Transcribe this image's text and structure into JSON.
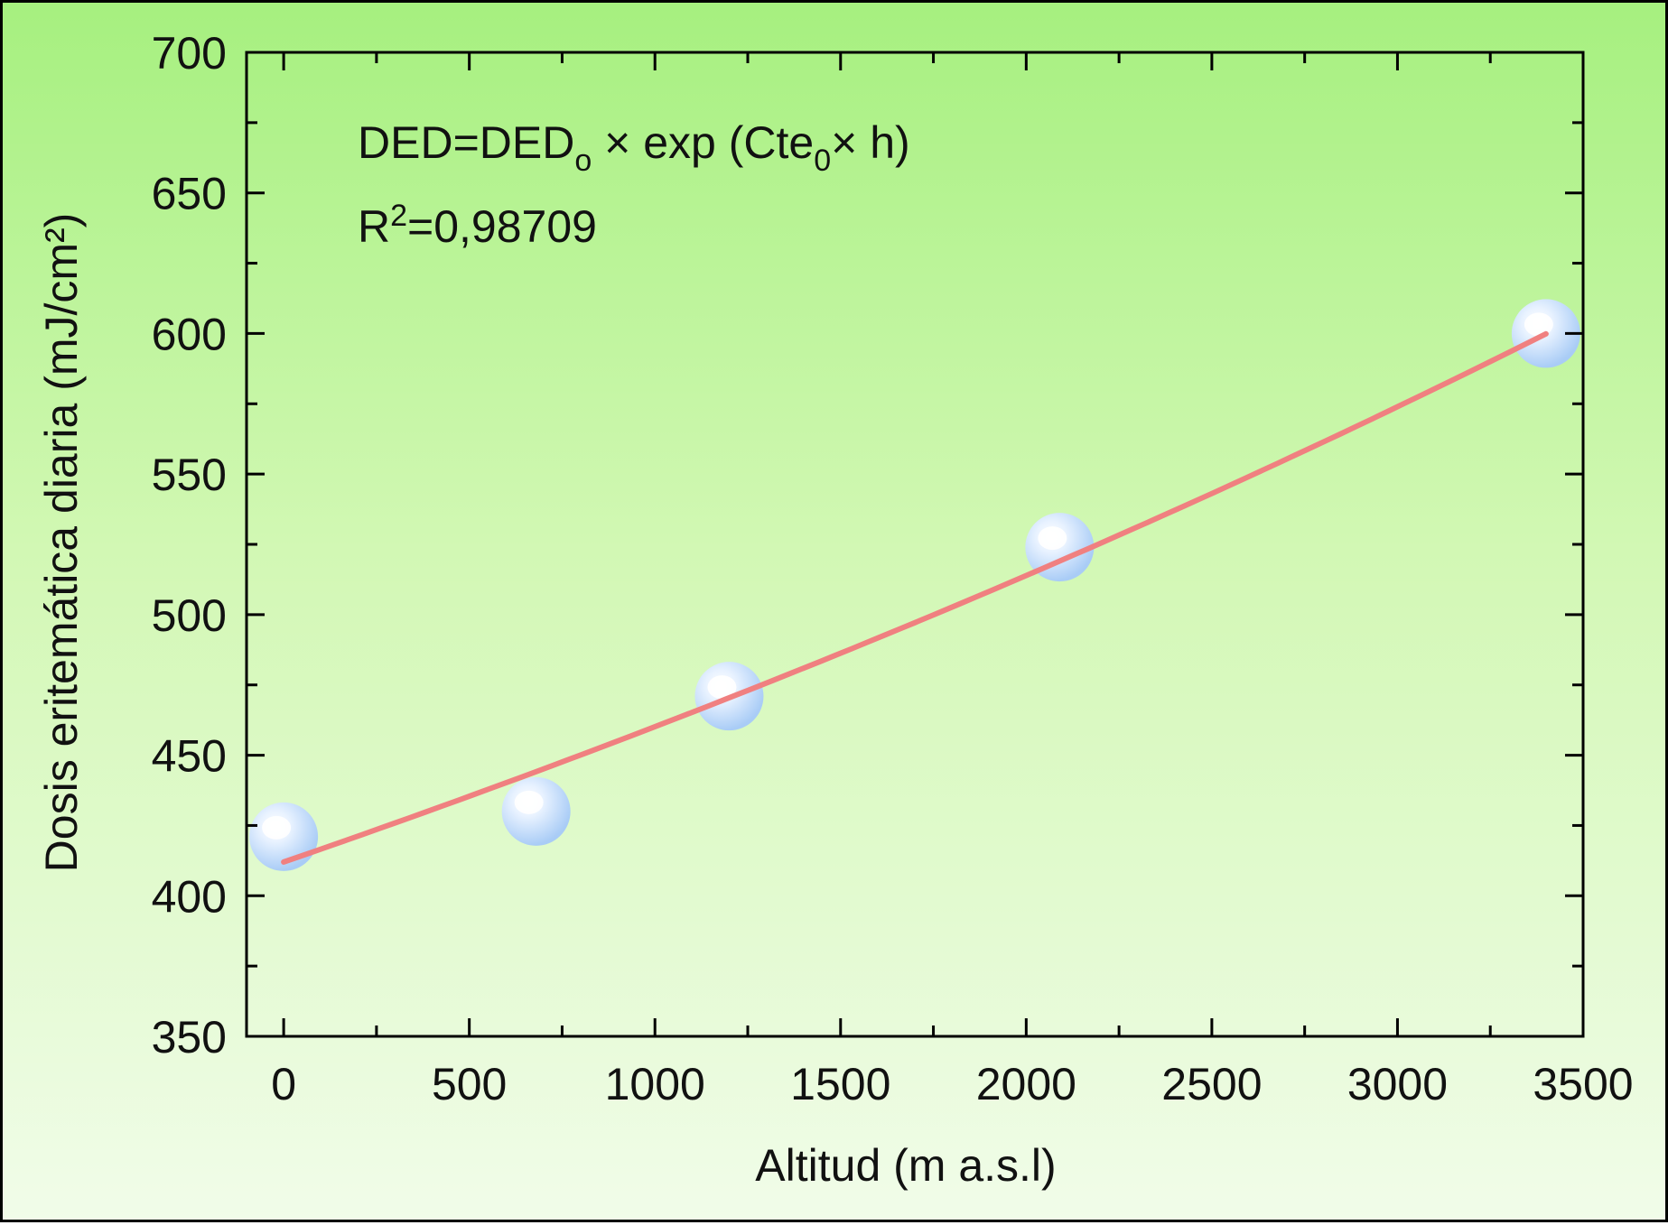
{
  "chart_data": {
    "type": "scatter",
    "xlabel": "Altitud (m a.s.l)",
    "ylabel": "Dosis eritemática diaria (mJ/cm²)",
    "xlim": [
      -100,
      3500
    ],
    "ylim": [
      350,
      700
    ],
    "x_ticks": [
      0,
      500,
      1000,
      1500,
      2000,
      2500,
      3000,
      3500
    ],
    "y_ticks": [
      350,
      400,
      450,
      500,
      550,
      600,
      650,
      700
    ],
    "x_tick_labels": [
      "0",
      "500",
      "1000",
      "1500",
      "2000",
      "2500",
      "3000",
      "3500"
    ],
    "y_tick_labels": [
      "350",
      "400",
      "450",
      "500",
      "550",
      "600",
      "650",
      "700"
    ],
    "series": [
      {
        "values": [
          {
            "x": 0,
            "y": 421
          },
          {
            "x": 680,
            "y": 430
          },
          {
            "x": 1200,
            "y": 471
          },
          {
            "x": 2090,
            "y": 524
          },
          {
            "x": 3400,
            "y": 600
          }
        ]
      }
    ],
    "fit": {
      "type": "exponential",
      "y0": 412,
      "k": 0.0001105,
      "x_range": [
        0,
        3400
      ]
    },
    "annotations": {
      "equation_main": "DED=DED",
      "equation_sub1": "o",
      "equation_mid": " × exp (Cte",
      "equation_sub2": "0",
      "equation_end": "× h)",
      "r2_prefix": "R",
      "r2_sup": "2",
      "r2_value": "=0,98709"
    },
    "colors": {
      "fit_line": "#f08080",
      "marker": "#b8d8ff",
      "marker_highlight": "#ffffff",
      "axis": "#000000"
    },
    "grid": false
  }
}
